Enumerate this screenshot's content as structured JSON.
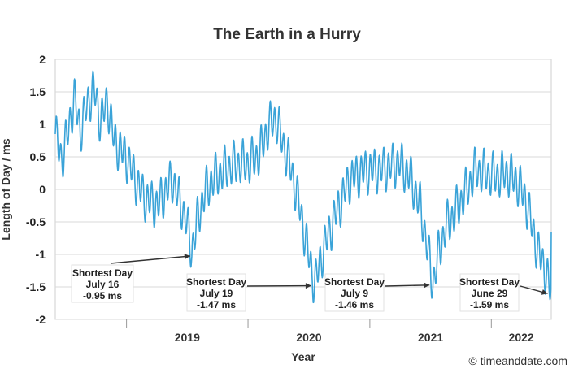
{
  "chart_data": {
    "type": "line",
    "title": "The Earth in a Hurry",
    "xlabel": "Year",
    "ylabel": "Length of Day / ms",
    "ylim": [
      -2,
      2
    ],
    "y_ticks": [
      "2",
      "1.5",
      "1",
      "0.5",
      "0",
      "-0.5",
      "-1",
      "-1.5",
      "-2"
    ],
    "x_ticks": [
      "2019",
      "2020",
      "2021",
      "2022"
    ],
    "xlim": [
      "2018-06-01",
      "2022-06-30"
    ],
    "grid": true,
    "line_color": "#3aa3d8",
    "series": [
      {
        "base_points": [
          [
            "2018-06-01",
            0.85
          ],
          [
            "2018-06-20",
            0.45
          ],
          [
            "2018-07-10",
            0.9
          ],
          [
            "2018-07-28",
            1.4
          ],
          [
            "2018-08-15",
            0.9
          ],
          [
            "2018-09-05",
            1.3
          ],
          [
            "2018-09-25",
            1.55
          ],
          [
            "2018-10-15",
            1.05
          ],
          [
            "2018-11-05",
            1.35
          ],
          [
            "2018-11-25",
            0.75
          ],
          [
            "2018-12-15",
            0.6
          ],
          [
            "2019-01-05",
            0.45
          ],
          [
            "2019-01-28",
            0.15
          ],
          [
            "2019-02-20",
            -0.1
          ],
          [
            "2019-03-15",
            -0.2
          ],
          [
            "2019-04-05",
            -0.25
          ],
          [
            "2019-04-25",
            -0.05
          ],
          [
            "2019-05-20",
            0.15
          ],
          [
            "2019-06-10",
            -0.2
          ],
          [
            "2019-06-28",
            -0.45
          ],
          [
            "2019-07-16",
            -0.95
          ],
          [
            "2019-08-05",
            -0.4
          ],
          [
            "2019-08-25",
            -0.05
          ],
          [
            "2019-09-15",
            0.15
          ],
          [
            "2019-10-10",
            0.25
          ],
          [
            "2019-11-05",
            0.35
          ],
          [
            "2019-12-05",
            0.4
          ],
          [
            "2020-01-05",
            0.4
          ],
          [
            "2020-02-05",
            0.55
          ],
          [
            "2020-03-01",
            0.95
          ],
          [
            "2020-03-25",
            1.1
          ],
          [
            "2020-04-15",
            0.7
          ],
          [
            "2020-05-10",
            0.3
          ],
          [
            "2020-06-05",
            -0.3
          ],
          [
            "2020-06-25",
            -0.85
          ],
          [
            "2020-07-19",
            -1.47
          ],
          [
            "2020-08-10",
            -1.0
          ],
          [
            "2020-09-05",
            -0.6
          ],
          [
            "2020-10-01",
            -0.25
          ],
          [
            "2020-11-01",
            0.15
          ],
          [
            "2020-12-01",
            0.25
          ],
          [
            "2021-01-01",
            0.3
          ],
          [
            "2021-02-01",
            0.3
          ],
          [
            "2021-03-01",
            0.35
          ],
          [
            "2021-04-01",
            0.4
          ],
          [
            "2021-05-01",
            0.2
          ],
          [
            "2021-06-01",
            -0.25
          ],
          [
            "2021-06-20",
            -0.8
          ],
          [
            "2021-07-09",
            -1.46
          ],
          [
            "2021-07-30",
            -0.9
          ],
          [
            "2021-08-20",
            -0.55
          ],
          [
            "2021-09-15",
            -0.35
          ],
          [
            "2021-10-15",
            -0.05
          ],
          [
            "2021-11-15",
            0.3
          ],
          [
            "2021-12-15",
            0.25
          ],
          [
            "2022-01-15",
            0.2
          ],
          [
            "2022-02-15",
            0.25
          ],
          [
            "2022-03-15",
            0.15
          ],
          [
            "2022-04-10",
            -0.1
          ],
          [
            "2022-05-01",
            -0.5
          ],
          [
            "2022-05-20",
            -0.95
          ],
          [
            "2022-06-10",
            -1.2
          ],
          [
            "2022-06-29",
            -1.59
          ],
          [
            "2022-06-30",
            -0.8
          ]
        ],
        "ripple_amplitude": 0.32,
        "ripple_period_days": 13.66
      }
    ],
    "annotations": [
      {
        "date": "2019-07-16",
        "value": -0.95,
        "lines": [
          "Shortest Day",
          "July 16",
          "-0.95 ms"
        ]
      },
      {
        "date": "2020-07-19",
        "value": -1.47,
        "lines": [
          "Shortest Day",
          "July 19",
          "-1.47 ms"
        ]
      },
      {
        "date": "2021-07-09",
        "value": -1.46,
        "lines": [
          "Shortest Day",
          "July 9",
          "-1.46 ms"
        ]
      },
      {
        "date": "2022-06-29",
        "value": -1.59,
        "lines": [
          "Shortest Day",
          "June 29",
          "-1.59 ms"
        ]
      }
    ]
  },
  "credit": "© timeanddate.com"
}
